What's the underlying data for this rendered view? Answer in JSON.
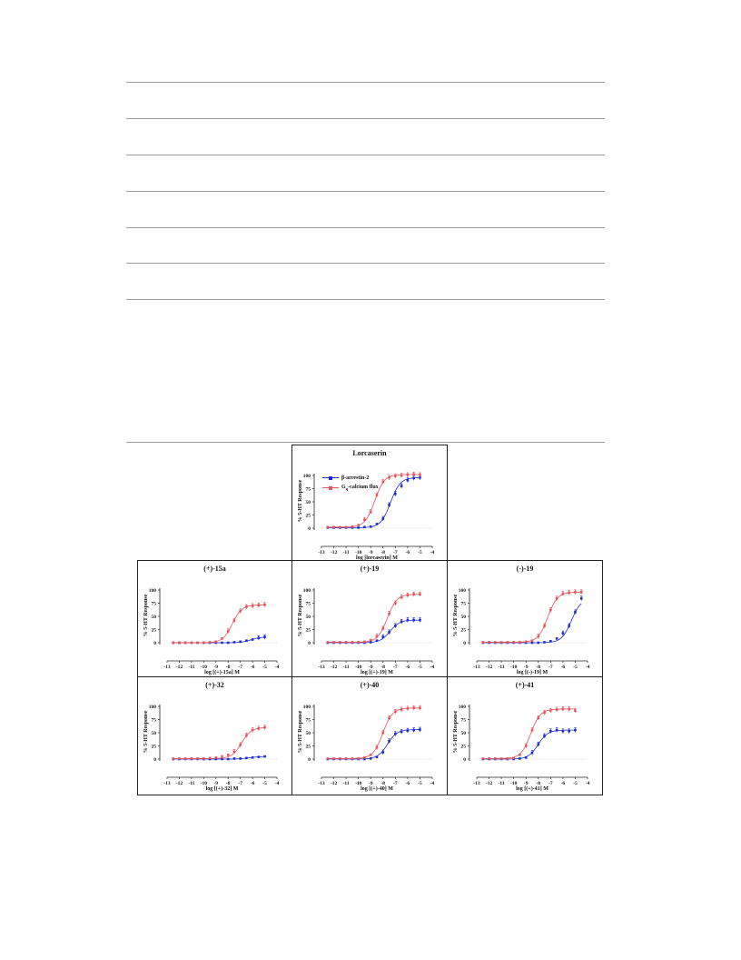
{
  "legend": {
    "arrestin": "β-arrestin-2",
    "gq_prefix": "G",
    "gq_sub": "q",
    "gq_suffix": "-calcium flux"
  },
  "colors": {
    "arrestin": "#1f2bd1",
    "gq": "#e8545b",
    "axis": "#222222",
    "baseline": "#bbbbbb"
  },
  "chart_data": [
    {
      "type": "line",
      "title": "Lorcaserin",
      "xlabel": "log [lorcaserin] M",
      "ylabel": "% 5-HT Response",
      "xlim": [
        -13,
        -4
      ],
      "ylim": [
        0,
        100
      ],
      "legend": "top-left",
      "xticks": [
        "-13",
        "-12",
        "-11",
        "-10",
        "-9",
        "-8",
        "-7",
        "-6",
        "-5",
        "-4"
      ],
      "yticks": [
        "0",
        "25",
        "50",
        "75",
        "100"
      ],
      "series": [
        {
          "name": "β-arrestin-2",
          "x": [
            -12.5,
            -12,
            -11.5,
            -11,
            -10.5,
            -10,
            -9.5,
            -9,
            -8.5,
            -8,
            -7.5,
            -7,
            -6.5,
            -6,
            -5.5,
            -5
          ],
          "y": [
            1,
            1,
            1,
            1,
            1,
            1,
            2,
            3,
            8,
            18,
            44,
            65,
            80,
            91,
            95,
            96
          ]
        },
        {
          "name": "Gq-calcium flux",
          "x": [
            -12.5,
            -12,
            -11.5,
            -11,
            -10.5,
            -10,
            -9.5,
            -9,
            -8.5,
            -8,
            -7.5,
            -7,
            -6.5,
            -6,
            -5.5,
            -5
          ],
          "y": [
            2,
            2,
            2,
            2,
            3,
            6,
            16,
            31,
            63,
            88,
            96,
            99,
            100,
            101,
            102,
            101
          ]
        }
      ]
    },
    {
      "type": "line",
      "title": "(+)-15a",
      "xlabel": "log [(+)-15a] M",
      "ylabel": "% 5-HT Response",
      "xlim": [
        -13,
        -4
      ],
      "ylim": [
        0,
        100
      ],
      "xticks": [
        "-13",
        "-12",
        "-11",
        "-10",
        "-9",
        "-8",
        "-7",
        "-6",
        "-5",
        "-4"
      ],
      "yticks": [
        "0",
        "25",
        "50",
        "75",
        "100"
      ],
      "series": [
        {
          "name": "β-arrestin-2",
          "x": [
            -12.5,
            -12,
            -11.5,
            -11,
            -10.5,
            -10,
            -9.5,
            -9,
            -8.5,
            -8,
            -7.5,
            -7,
            -6.5,
            -6,
            -5.5,
            -5
          ],
          "y": [
            0,
            0,
            0,
            0,
            0,
            0,
            0,
            0,
            0,
            0,
            1,
            2,
            4,
            6,
            9,
            11
          ]
        },
        {
          "name": "Gq-calcium flux",
          "x": [
            -12.5,
            -12,
            -11.5,
            -11,
            -10.5,
            -10,
            -9.5,
            -9,
            -8.5,
            -8,
            -7.5,
            -7,
            -6.5,
            -6,
            -5.5,
            -5
          ],
          "y": [
            0,
            0,
            0,
            0,
            0,
            0,
            1,
            2,
            8,
            22,
            42,
            60,
            68,
            70,
            71,
            72
          ]
        }
      ]
    },
    {
      "type": "line",
      "title": "(+)-19",
      "xlabel": "log [(+)-19] M",
      "ylabel": "% 5-HT Response",
      "xlim": [
        -13,
        -4
      ],
      "ylim": [
        0,
        100
      ],
      "xticks": [
        "-13",
        "-12",
        "-11",
        "-10",
        "-9",
        "-8",
        "-7",
        "-6",
        "-5",
        "-4"
      ],
      "yticks": [
        "0",
        "25",
        "50",
        "75",
        "100"
      ],
      "series": [
        {
          "name": "β-arrestin-2",
          "x": [
            -12.5,
            -12,
            -11.5,
            -11,
            -10.5,
            -10,
            -9.5,
            -9,
            -8.5,
            -8,
            -7.5,
            -7,
            -6.5,
            -6,
            -5.5,
            -5
          ],
          "y": [
            0,
            0,
            0,
            0,
            0,
            0,
            0,
            1,
            4,
            11,
            20,
            32,
            40,
            43,
            43,
            43
          ]
        },
        {
          "name": "Gq-calcium flux",
          "x": [
            -12.5,
            -12,
            -11.5,
            -11,
            -10.5,
            -10,
            -9.5,
            -9,
            -8.5,
            -8,
            -7.5,
            -7,
            -6.5,
            -6,
            -5.5,
            -5
          ],
          "y": [
            1,
            1,
            1,
            1,
            1,
            1,
            2,
            5,
            12,
            27,
            55,
            75,
            86,
            90,
            92,
            92
          ]
        }
      ]
    },
    {
      "type": "line",
      "title": "(-)-19",
      "xlabel": "log [(-)-19] M",
      "ylabel": "% 5-HT Response",
      "xlim": [
        -13,
        -4
      ],
      "ylim": [
        0,
        100
      ],
      "xticks": [
        "-13",
        "-12",
        "-11",
        "-10",
        "-9",
        "-8",
        "-7",
        "-6",
        "-5",
        "-4"
      ],
      "yticks": [
        "0",
        "25",
        "50",
        "75",
        "100"
      ],
      "series": [
        {
          "name": "β-arrestin-2",
          "x": [
            -12.5,
            -12,
            -11.5,
            -11,
            -10.5,
            -10,
            -9.5,
            -9,
            -8.5,
            -8,
            -7.5,
            -7,
            -6.5,
            -6,
            -5.5,
            -5,
            -4.5
          ],
          "y": [
            0,
            0,
            0,
            0,
            0,
            0,
            0,
            0,
            0,
            0,
            1,
            3,
            8,
            18,
            32,
            58,
            84
          ]
        },
        {
          "name": "Gq-calcium flux",
          "x": [
            -12.5,
            -12,
            -11.5,
            -11,
            -10.5,
            -10,
            -9.5,
            -9,
            -8.5,
            -8,
            -7.5,
            -7,
            -6.5,
            -6,
            -5.5,
            -5,
            -4.5
          ],
          "y": [
            1,
            1,
            1,
            1,
            1,
            1,
            1,
            2,
            4,
            12,
            32,
            62,
            84,
            93,
            95,
            96,
            96
          ]
        }
      ]
    },
    {
      "type": "line",
      "title": "(+)-32",
      "xlabel": "log [(+)-32] M",
      "ylabel": "% 5-HT Response",
      "xlim": [
        -13,
        -4
      ],
      "ylim": [
        0,
        100
      ],
      "xticks": [
        "-13",
        "-12",
        "-11",
        "-10",
        "-9",
        "-8",
        "-7",
        "-6",
        "-5",
        "-4"
      ],
      "yticks": [
        "0",
        "25",
        "50",
        "75",
        "100"
      ],
      "series": [
        {
          "name": "β-arrestin-2",
          "x": [
            -12.5,
            -12,
            -11.5,
            -11,
            -10.5,
            -10,
            -9.5,
            -9,
            -8.5,
            -8,
            -7.5,
            -7,
            -6.5,
            -6,
            -5.5,
            -5
          ],
          "y": [
            0,
            0,
            0,
            0,
            0,
            0,
            0,
            0,
            0,
            0,
            1,
            1,
            2,
            3,
            4,
            5
          ]
        },
        {
          "name": "Gq-calcium flux",
          "x": [
            -12.5,
            -12,
            -11.5,
            -11,
            -10.5,
            -10,
            -9.5,
            -9,
            -8.5,
            -8,
            -7.5,
            -7,
            -6.5,
            -6,
            -5.5,
            -5
          ],
          "y": [
            1,
            1,
            1,
            1,
            1,
            1,
            2,
            3,
            5,
            8,
            14,
            27,
            45,
            55,
            58,
            60
          ]
        }
      ]
    },
    {
      "type": "line",
      "title": "(+)-40",
      "xlabel": "log [(+)-40] M",
      "ylabel": "% 5-HT Response",
      "xlim": [
        -13,
        -4
      ],
      "ylim": [
        0,
        100
      ],
      "xticks": [
        "-13",
        "-12",
        "-11",
        "-10",
        "-9",
        "-8",
        "-7",
        "-6",
        "-5",
        "-4"
      ],
      "yticks": [
        "0",
        "25",
        "50",
        "75",
        "100"
      ],
      "series": [
        {
          "name": "β-arrestin-2",
          "x": [
            -12.5,
            -12,
            -11.5,
            -11,
            -10.5,
            -10,
            -9.5,
            -9,
            -8.5,
            -8,
            -7.5,
            -7,
            -6.5,
            -6,
            -5.5,
            -5
          ],
          "y": [
            0,
            0,
            0,
            0,
            0,
            0,
            0,
            1,
            4,
            13,
            34,
            48,
            52,
            54,
            55,
            56
          ]
        },
        {
          "name": "Gq-calcium flux",
          "x": [
            -12.5,
            -12,
            -11.5,
            -11,
            -10.5,
            -10,
            -9.5,
            -9,
            -8.5,
            -8,
            -7.5,
            -7,
            -6.5,
            -6,
            -5.5,
            -5
          ],
          "y": [
            1,
            1,
            1,
            1,
            1,
            1,
            3,
            8,
            22,
            50,
            78,
            90,
            94,
            96,
            97,
            97
          ]
        }
      ]
    },
    {
      "type": "line",
      "title": "(+)-41",
      "xlabel": "log [(+)-41] M",
      "ylabel": "% 5-HT Response",
      "xlim": [
        -13,
        -4
      ],
      "ylim": [
        0,
        100
      ],
      "xticks": [
        "-13",
        "-12",
        "-11",
        "-10",
        "-9",
        "-8",
        "-7",
        "-6",
        "-5",
        "-4"
      ],
      "yticks": [
        "0",
        "25",
        "50",
        "75",
        "100"
      ],
      "series": [
        {
          "name": "β-arrestin-2",
          "x": [
            -12.5,
            -12,
            -11.5,
            -11,
            -10.5,
            -10,
            -9.5,
            -9,
            -8.5,
            -8,
            -7.5,
            -7,
            -6.5,
            -6,
            -5.5,
            -5
          ],
          "y": [
            0,
            0,
            0,
            0,
            0,
            0,
            1,
            3,
            12,
            28,
            44,
            53,
            55,
            53,
            53,
            55
          ]
        },
        {
          "name": "Gq-calcium flux",
          "x": [
            -12.5,
            -12,
            -11.5,
            -11,
            -10.5,
            -10,
            -9.5,
            -9,
            -8.5,
            -8,
            -7.5,
            -7,
            -6.5,
            -6,
            -5.5,
            -5
          ],
          "y": [
            1,
            1,
            1,
            1,
            1,
            2,
            8,
            25,
            55,
            78,
            88,
            92,
            94,
            95,
            95,
            92
          ]
        }
      ]
    }
  ]
}
